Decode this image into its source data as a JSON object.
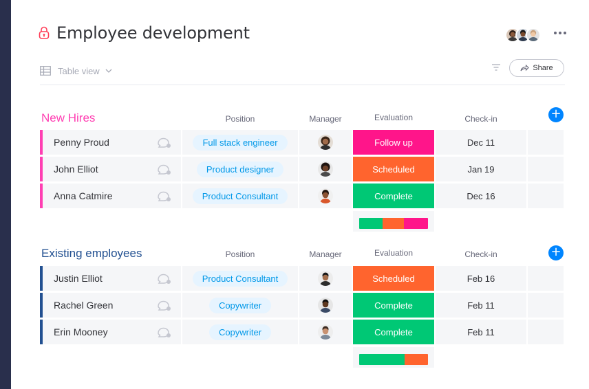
{
  "board": {
    "title": "Employee development",
    "view_label": "Table view",
    "share_label": "Share"
  },
  "colors": {
    "follow_up": "#ff158a",
    "scheduled": "#ff642e",
    "complete": "#00c875",
    "new_hires": "#ff3fb2",
    "existing": "#225091",
    "add": "#0085ff"
  },
  "columns": {
    "position": "Position",
    "manager": "Manager",
    "evaluation": "Evaluation",
    "checkin": "Check-in"
  },
  "groups": [
    {
      "title": "New Hires",
      "rows": [
        {
          "name": "Penny Proud",
          "position": "Full stack engineer",
          "evaluation": "Follow up",
          "checkin": "Dec 11"
        },
        {
          "name": "John Elliot",
          "position": "Product designer",
          "evaluation": "Scheduled",
          "checkin": "Jan 19"
        },
        {
          "name": "Anna Catmire",
          "position": "Product Consultant",
          "evaluation": "Complete",
          "checkin": "Dec 16"
        }
      ],
      "evaluation_summary": [
        {
          "status": "Complete",
          "fraction": 0.34
        },
        {
          "status": "Scheduled",
          "fraction": 0.31
        },
        {
          "status": "Follow up",
          "fraction": 0.35
        }
      ]
    },
    {
      "title": "Existing employees",
      "rows": [
        {
          "name": "Justin Elliot",
          "position": "Product Consultant",
          "evaluation": "Scheduled",
          "checkin": "Feb 16"
        },
        {
          "name": "Rachel Green",
          "position": "Copywriter",
          "evaluation": "Complete",
          "checkin": "Feb 11"
        },
        {
          "name": "Erin Mooney",
          "position": "Copywriter",
          "evaluation": "Complete",
          "checkin": "Feb 11"
        }
      ],
      "evaluation_summary": [
        {
          "status": "Complete",
          "fraction": 0.66
        },
        {
          "status": "Scheduled",
          "fraction": 0.34
        }
      ]
    }
  ],
  "icons": [
    "lock-icon",
    "table-icon",
    "chevron-down-icon",
    "filter-icon",
    "share-arrow-icon",
    "more-icon",
    "chat-bubble-icon",
    "add-icon"
  ]
}
